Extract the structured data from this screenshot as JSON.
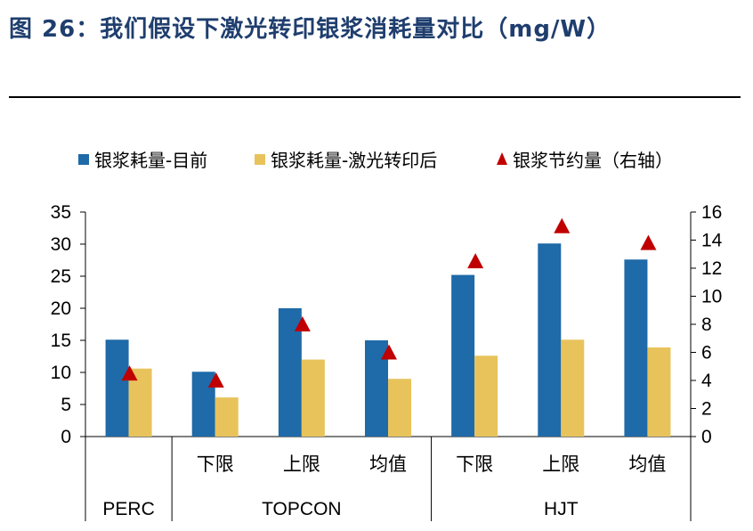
{
  "figure": {
    "title": "图 26：我们假设下激光转印银浆消耗量对比（mg/W）"
  },
  "colors": {
    "current": "#1f6aa8",
    "laser": "#e8c35c",
    "saving": "#c00000",
    "title": "#1f3e6e"
  },
  "chart_data": {
    "type": "bar",
    "title": "图 26：我们假设下激光转印银浆消耗量对比（mg/W）",
    "categories": [
      "",
      "下限",
      "上限",
      "均值",
      "下限",
      "上限",
      "均值"
    ],
    "groups": [
      {
        "label": "PERC",
        "span": 1
      },
      {
        "label": "TOPCON",
        "span": 3
      },
      {
        "label": "HJT",
        "span": 3
      }
    ],
    "series": [
      {
        "name": "银浆耗量-目前",
        "type": "bar",
        "axis": "left",
        "values": [
          15.1,
          10.1,
          20.0,
          15.0,
          25.2,
          30.1,
          27.6
        ]
      },
      {
        "name": "银浆耗量-激光转印后",
        "type": "bar",
        "axis": "left",
        "values": [
          10.6,
          6.1,
          12.0,
          9.0,
          12.6,
          15.1,
          13.9
        ]
      },
      {
        "name": "银浆节约量（右轴）",
        "type": "marker-triangle",
        "axis": "right",
        "values": [
          4.5,
          4.0,
          8.0,
          6.0,
          12.5,
          15.0,
          13.8
        ]
      }
    ],
    "left_axis": {
      "ylim": [
        0,
        35
      ],
      "ticks": [
        0,
        5,
        10,
        15,
        20,
        25,
        30,
        35
      ]
    },
    "right_axis": {
      "ylim": [
        0,
        16
      ],
      "ticks": [
        0,
        2,
        4,
        6,
        8,
        10,
        12,
        14,
        16
      ]
    },
    "legend_position": "top",
    "grid": false
  }
}
